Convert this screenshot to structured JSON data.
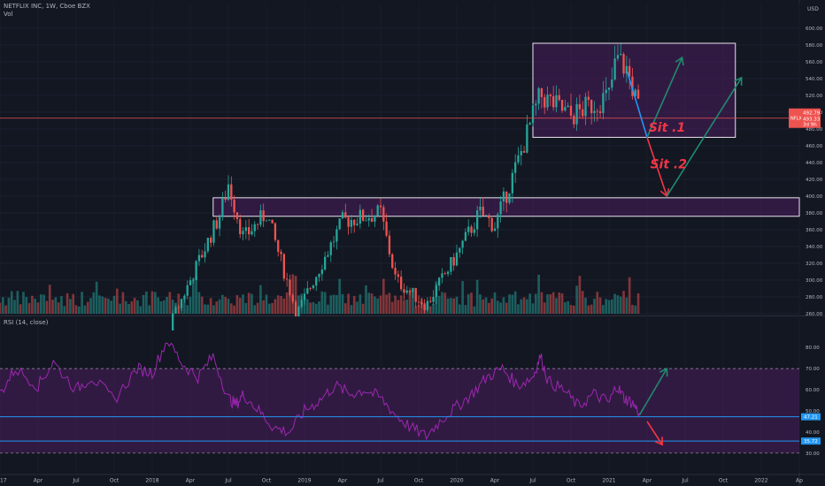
{
  "header": {
    "symbol_line": "NETFLIX INC, 1W, Cboe BZX",
    "vol_label": "Vol",
    "currency": "USD",
    "rsi_label": "RSI (14, close)"
  },
  "annotations": {
    "sit1": "Sit .1",
    "sit2": "Sit .2"
  },
  "price_tags": {
    "symbol": "NFLX",
    "price": "492.79",
    "lines": [
      "493.33",
      "3d 9h"
    ]
  },
  "rsi_tags": [
    "47.21",
    "35.72"
  ],
  "colors": {
    "background": "#131722",
    "up": "#26a69a",
    "down": "#ef5350",
    "rsi_line": "#9c27b0",
    "zone_fill": "#4a1d5c",
    "arrow_up": "#1e8c6e",
    "arrow_down": "#f23645",
    "blue_line": "#2196f3"
  },
  "chart_data": [
    {
      "type": "candlestick",
      "title": "NETFLIX INC, 1W, Cboe BZX",
      "y_ticks": [
        260,
        280,
        300,
        320,
        340,
        360,
        380,
        400,
        420,
        440,
        460,
        480,
        500,
        520,
        540,
        560,
        580,
        600
      ],
      "ylim": [
        260,
        603
      ],
      "x_ticks": [
        "2017",
        "Apr",
        "Jul",
        "Oct",
        "2018",
        "Apr",
        "Jul",
        "Oct",
        "2019",
        "Apr",
        "Jul",
        "Oct",
        "2020",
        "Apr",
        "Jul",
        "Oct",
        "2021",
        "Apr",
        "Jul",
        "Oct",
        "2022",
        "Ap"
      ],
      "xlim": [
        2017.0,
        2022.25
      ],
      "key_prices": [
        {
          "t": 2017.0,
          "p": 127
        },
        {
          "t": 2017.5,
          "p": 150
        },
        {
          "t": 2018.0,
          "p": 200
        },
        {
          "t": 2018.25,
          "p": 300
        },
        {
          "t": 2018.45,
          "p": 380
        },
        {
          "t": 2018.5,
          "p": 415
        },
        {
          "t": 2018.6,
          "p": 350
        },
        {
          "t": 2018.75,
          "p": 380
        },
        {
          "t": 2018.95,
          "p": 260
        },
        {
          "t": 2019.25,
          "p": 370
        },
        {
          "t": 2019.5,
          "p": 380
        },
        {
          "t": 2019.6,
          "p": 300
        },
        {
          "t": 2019.8,
          "p": 270
        },
        {
          "t": 2020.0,
          "p": 330
        },
        {
          "t": 2020.15,
          "p": 380
        },
        {
          "t": 2020.25,
          "p": 365
        },
        {
          "t": 2020.4,
          "p": 440
        },
        {
          "t": 2020.5,
          "p": 495
        },
        {
          "t": 2020.55,
          "p": 520
        },
        {
          "t": 2020.75,
          "p": 495
        },
        {
          "t": 2021.0,
          "p": 520
        },
        {
          "t": 2021.05,
          "p": 565
        },
        {
          "t": 2021.12,
          "p": 550
        },
        {
          "t": 2021.2,
          "p": 500
        }
      ],
      "last_price": 492.79,
      "zones": [
        {
          "t_start": 2020.5,
          "t_end": 2021.83,
          "p_low": 470,
          "p_high": 582
        },
        {
          "t_start": 2018.4,
          "t_end": 2022.25,
          "p_low": 376,
          "p_high": 398
        }
      ],
      "volume": {
        "label": "Vol"
      }
    },
    {
      "type": "line",
      "title": "RSI (14, close)",
      "y_ticks": [
        30,
        40,
        50,
        60,
        70,
        80
      ],
      "ylim": [
        27,
        83
      ],
      "levels": [
        70,
        30
      ],
      "x": [
        2017.0,
        2017.1,
        2017.25,
        2017.35,
        2017.5,
        2017.6,
        2017.75,
        2017.9,
        2018.0,
        2018.1,
        2018.2,
        2018.3,
        2018.4,
        2018.5,
        2018.55,
        2018.6,
        2018.7,
        2018.8,
        2018.9,
        2019.0,
        2019.1,
        2019.2,
        2019.3,
        2019.4,
        2019.5,
        2019.6,
        2019.7,
        2019.8,
        2019.9,
        2020.0,
        2020.1,
        2020.2,
        2020.3,
        2020.4,
        2020.5,
        2020.55,
        2020.6,
        2020.7,
        2020.8,
        2020.9,
        2021.0,
        2021.05,
        2021.1,
        2021.15,
        2021.2
      ],
      "values": [
        58,
        70,
        62,
        73,
        60,
        66,
        55,
        70,
        68,
        84,
        72,
        66,
        76,
        56,
        53,
        58,
        50,
        42,
        40,
        50,
        55,
        62,
        58,
        60,
        56,
        48,
        42,
        38,
        46,
        52,
        58,
        66,
        70,
        62,
        66,
        76,
        64,
        60,
        52,
        58,
        54,
        62,
        56,
        54,
        49
      ],
      "tags": [
        47.21,
        35.72
      ]
    }
  ]
}
